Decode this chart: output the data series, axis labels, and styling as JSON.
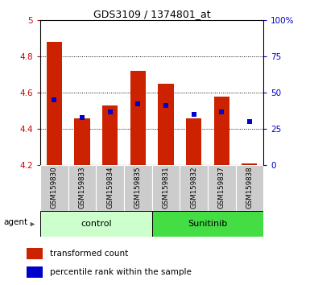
{
  "title": "GDS3109 / 1374801_at",
  "samples": [
    "GSM159830",
    "GSM159833",
    "GSM159834",
    "GSM159835",
    "GSM159831",
    "GSM159832",
    "GSM159837",
    "GSM159838"
  ],
  "red_values": [
    4.88,
    4.46,
    4.53,
    4.72,
    4.65,
    4.46,
    4.58,
    4.21
  ],
  "blue_pct": [
    45,
    33,
    37,
    42,
    41,
    35,
    37,
    30
  ],
  "ylim_left": [
    4.2,
    5.0
  ],
  "ylim_right": [
    0,
    100
  ],
  "yticks_left": [
    4.2,
    4.4,
    4.6,
    4.8,
    5.0
  ],
  "ytick_labels_left": [
    "4.2",
    "4.4",
    "4.6",
    "4.8",
    "5"
  ],
  "yticks_right": [
    0,
    25,
    50,
    75,
    100
  ],
  "ytick_labels_right": [
    "0",
    "25",
    "50",
    "75",
    "100%"
  ],
  "bar_bottom": 4.2,
  "red_color": "#cc2200",
  "blue_color": "#0000cc",
  "control_bg": "#ccffcc",
  "sunitinib_bg": "#44dd44",
  "sample_box_bg": "#cccccc",
  "bar_width": 0.55,
  "legend_red": "transformed count",
  "legend_blue": "percentile rank within the sample",
  "left_tick_color": "#cc0000",
  "right_tick_color": "#0000cc"
}
